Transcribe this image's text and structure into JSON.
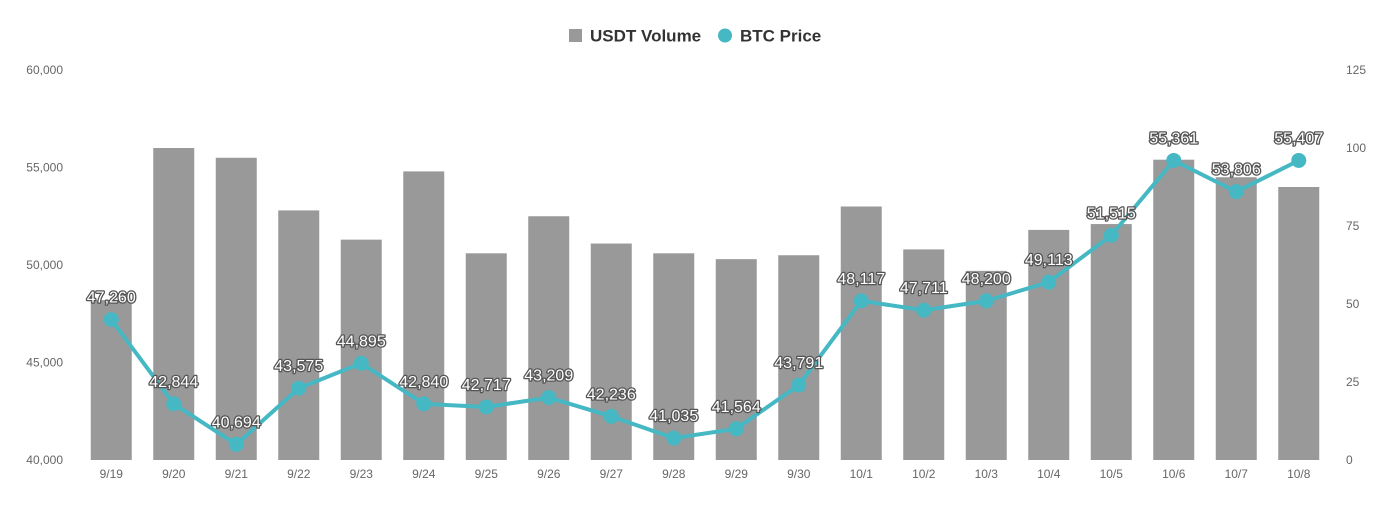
{
  "chart_data": {
    "type": "bar+line",
    "categories": [
      "9/19",
      "9/20",
      "9/21",
      "9/22",
      "9/23",
      "9/24",
      "9/25",
      "9/26",
      "9/27",
      "9/28",
      "9/29",
      "9/30",
      "10/1",
      "10/2",
      "10/3",
      "10/4",
      "10/5",
      "10/6",
      "10/7",
      "10/8"
    ],
    "series": [
      {
        "name": "USDT Volume",
        "type": "bar",
        "axis": "left",
        "color": "#999999",
        "values": [
          48200,
          56000,
          55500,
          52800,
          51300,
          54800,
          50600,
          52500,
          51100,
          50600,
          50300,
          50500,
          53000,
          50800,
          49700,
          51800,
          52100,
          55400,
          54500,
          54000
        ]
      },
      {
        "name": "BTC Price",
        "type": "line",
        "axis": "right",
        "color": "#45B8C4",
        "values": [
          45,
          18,
          5,
          23,
          31,
          18,
          17,
          20,
          14,
          7,
          10,
          24,
          51,
          48,
          51,
          57,
          72,
          96,
          86,
          96
        ],
        "labels": [
          "47,260",
          "42,844",
          "40,694",
          "43,575",
          "44,895",
          "42,840",
          "42,717",
          "43,209",
          "42,236",
          "41,035",
          "41,564",
          "43,791",
          "48,117",
          "47,711",
          "48,200",
          "49,113",
          "51,515",
          "55,361",
          "53,806",
          "55,407"
        ]
      }
    ],
    "y_left": {
      "range": [
        40000,
        60000
      ],
      "ticks": [
        "40,000",
        "45,000",
        "50,000",
        "55,000",
        "60,000"
      ]
    },
    "y_right": {
      "range": [
        0,
        125
      ],
      "ticks": [
        "0",
        "25",
        "50",
        "75",
        "100",
        "125"
      ]
    },
    "legend": {
      "placement": "top-center",
      "items": [
        {
          "label": "USDT Volume",
          "marker": "square",
          "color": "#999999"
        },
        {
          "label": "BTC Price",
          "marker": "circle",
          "color": "#45B8C4"
        }
      ]
    },
    "grid": false
  }
}
